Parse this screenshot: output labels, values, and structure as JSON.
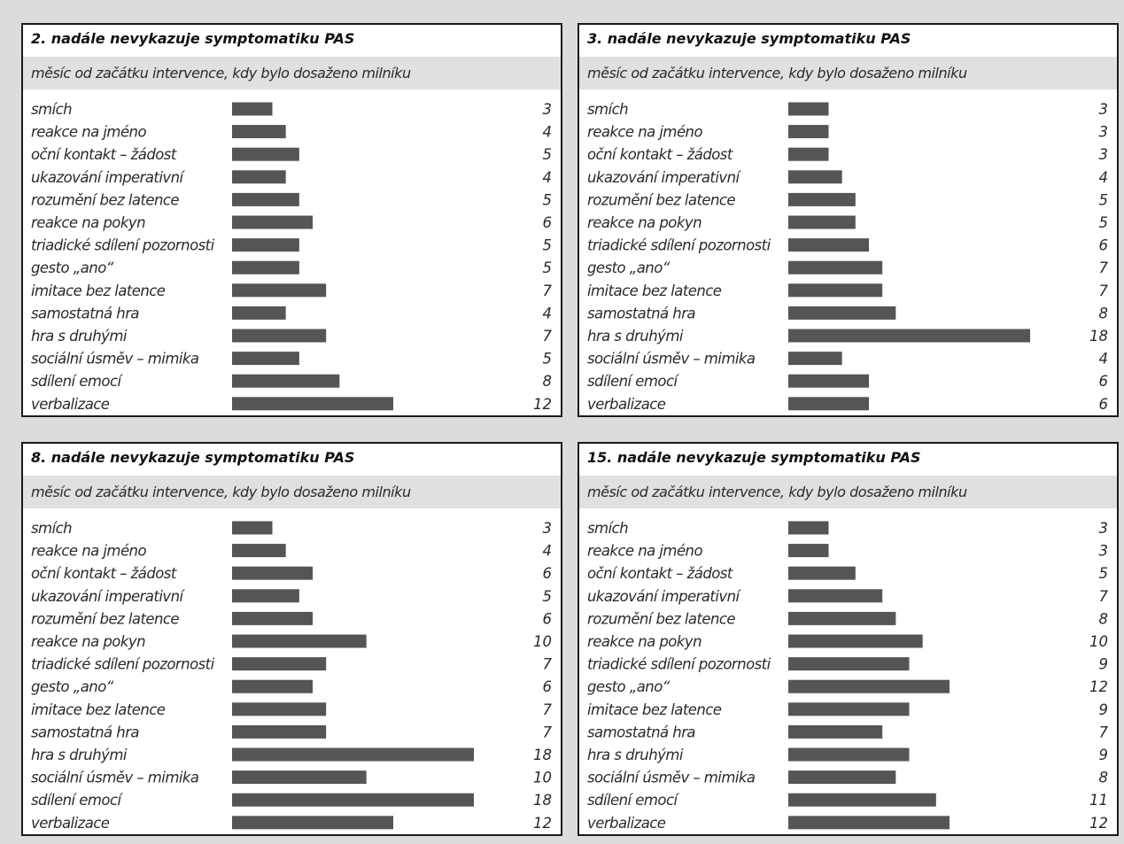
{
  "chart_data": [
    {
      "type": "bar",
      "title": "2. nadále nevykazuje symptomatiku PAS",
      "subtitle": "měsíc od začátku intervence, kdy bylo dosaženo milníku",
      "categories": [
        "smích",
        "reakce na jméno",
        "oční kontakt – žádost",
        "ukazování imperativní",
        "rozumění bez latence",
        "reakce na pokyn",
        "triadické sdílení pozornosti",
        "gesto „ano“",
        "imitace bez latence",
        "samostatná hra",
        "hra s druhými",
        "sociální úsměv –  mimika",
        "sdílení emocí",
        "verbalizace"
      ],
      "values": [
        3,
        4,
        5,
        4,
        5,
        6,
        5,
        5,
        7,
        4,
        7,
        5,
        8,
        12
      ],
      "xlim": [
        0,
        18
      ],
      "orientation": "horizontal",
      "bar_color": "#555555"
    },
    {
      "type": "bar",
      "title": "3. nadále nevykazuje symptomatiku PAS",
      "subtitle": "měsíc od začátku intervence, kdy bylo dosaženo milníku",
      "categories": [
        "smích",
        "reakce na jméno",
        "oční kontakt – žádost",
        "ukazování imperativní",
        "rozumění bez latence",
        "reakce na pokyn",
        "triadické sdílení pozornosti",
        "gesto „ano“",
        "imitace bez latence",
        "samostatná hra",
        "hra s druhými",
        "sociální úsměv – mimika",
        "sdílení emocí",
        "verbalizace"
      ],
      "values": [
        3,
        3,
        3,
        4,
        5,
        5,
        6,
        7,
        7,
        8,
        18,
        4,
        6,
        6
      ],
      "xlim": [
        0,
        18
      ],
      "orientation": "horizontal",
      "bar_color": "#555555"
    },
    {
      "type": "bar",
      "title": "8. nadále nevykazuje symptomatiku PAS",
      "subtitle": "měsíc od začátku intervence, kdy bylo dosaženo milníku",
      "categories": [
        "smích",
        "reakce na jméno",
        "oční kontakt – žádost",
        "ukazování imperativní",
        "rozumění bez latence",
        "reakce na pokyn",
        "triadické sdílení pozornosti",
        "gesto „ano“",
        "imitace bez latence",
        "samostatná hra",
        "hra s druhými",
        "sociální úsměv – mimika",
        "sdílení emocí",
        "verbalizace"
      ],
      "values": [
        3,
        4,
        6,
        5,
        6,
        10,
        7,
        6,
        7,
        7,
        18,
        10,
        18,
        12
      ],
      "xlim": [
        0,
        18
      ],
      "orientation": "horizontal",
      "bar_color": "#555555"
    },
    {
      "type": "bar",
      "title": "15. nadále nevykazuje symptomatiku PAS",
      "subtitle": "měsíc od začátku intervence, kdy bylo dosaženo milníku",
      "categories": [
        "smích",
        "reakce na jméno",
        "oční kontakt – žádost",
        "ukazování imperativní",
        "rozumění bez latence",
        "reakce na pokyn",
        "triadické sdílení pozornosti",
        "gesto „ano“",
        "imitace bez latence",
        "samostatná hra",
        "hra s druhými",
        "sociální úsměv – mimika",
        "sdílení emocí",
        "verbalizace"
      ],
      "values": [
        3,
        3,
        5,
        7,
        8,
        10,
        9,
        12,
        9,
        7,
        9,
        8,
        11,
        12
      ],
      "xlim": [
        0,
        18
      ],
      "orientation": "horizontal",
      "bar_color": "#555555"
    }
  ]
}
